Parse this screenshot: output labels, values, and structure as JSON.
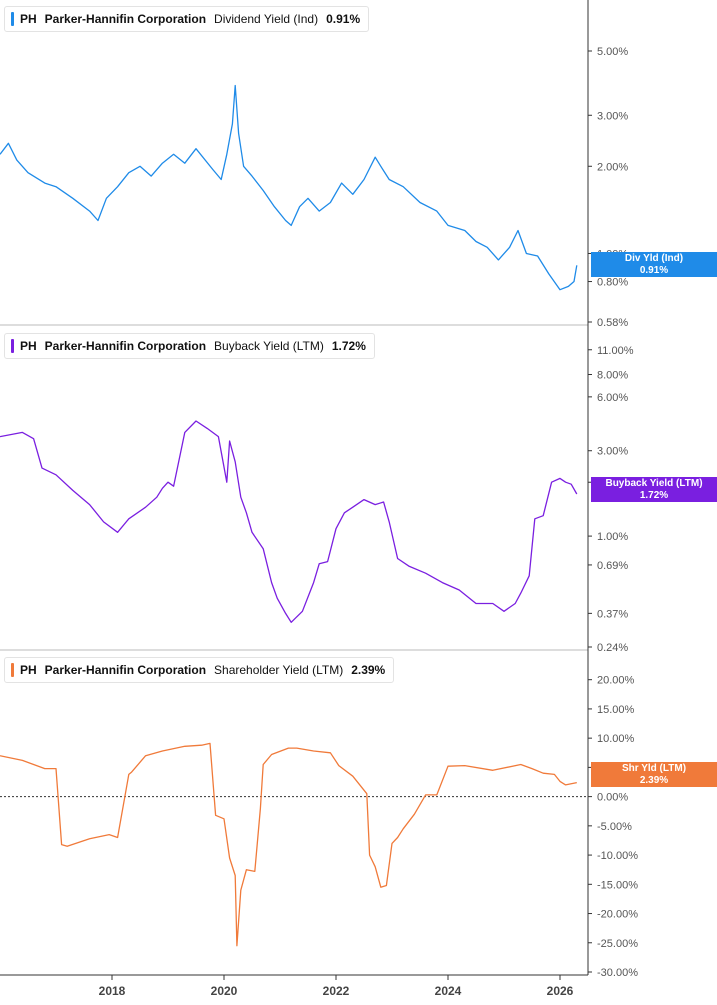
{
  "colors": {
    "dividend": "#1f8be8",
    "buyback": "#7a1fe0",
    "shareholder": "#f07a3a",
    "axis": "#333333",
    "separator": "#bbbbbb"
  },
  "panels": [
    {
      "ticker": "PH",
      "company": "Parker-Hannifin Corporation",
      "metric": "Dividend Yield (Ind)",
      "value": "0.91%",
      "tag_label": "Div Yld (Ind)",
      "tag_value": "0.91%"
    },
    {
      "ticker": "PH",
      "company": "Parker-Hannifin Corporation",
      "metric": "Buyback Yield (LTM)",
      "value": "1.72%",
      "tag_label": "Buyback Yield (LTM)",
      "tag_value": "1.72%"
    },
    {
      "ticker": "PH",
      "company": "Parker-Hannifin Corporation",
      "metric": "Shareholder Yield (LTM)",
      "value": "2.39%",
      "tag_label": "Shr Yld (LTM)",
      "tag_value": "2.39%"
    }
  ],
  "chart_data": [
    {
      "type": "line",
      "title": "PH Parker-Hannifin Corporation Dividend Yield (Ind) 0.91%",
      "scale": "log",
      "ylim": [
        0.58,
        6.5
      ],
      "y_ticks": [
        {
          "v": 5.0,
          "label": "5.00%"
        },
        {
          "v": 3.0,
          "label": "3.00%"
        },
        {
          "v": 2.0,
          "label": "2.00%"
        },
        {
          "v": 1.0,
          "label": "1.00%"
        },
        {
          "v": 0.8,
          "label": "0.80%"
        },
        {
          "v": 0.58,
          "label": "0.58%"
        }
      ],
      "series": [
        {
          "color": "#1f8be8",
          "x": [
            2016.0,
            2016.15,
            2016.3,
            2016.5,
            2016.8,
            2017.0,
            2017.3,
            2017.6,
            2017.75,
            2017.9,
            2018.1,
            2018.3,
            2018.5,
            2018.7,
            2018.9,
            2019.1,
            2019.3,
            2019.5,
            2019.8,
            2019.95,
            2020.05,
            2020.15,
            2020.2,
            2020.26,
            2020.35,
            2020.5,
            2020.7,
            2020.9,
            2021.1,
            2021.2,
            2021.35,
            2021.5,
            2021.7,
            2021.9,
            2022.1,
            2022.3,
            2022.5,
            2022.7,
            2022.8,
            2022.95,
            2023.2,
            2023.5,
            2023.8,
            2024.0,
            2024.3,
            2024.5,
            2024.7,
            2024.9,
            2025.1,
            2025.25,
            2025.4,
            2025.6,
            2025.8,
            2026.0,
            2026.15,
            2026.25,
            2026.3
          ],
          "values": [
            2.2,
            2.4,
            2.1,
            1.9,
            1.75,
            1.7,
            1.55,
            1.4,
            1.3,
            1.55,
            1.7,
            1.9,
            2.0,
            1.85,
            2.05,
            2.2,
            2.05,
            2.3,
            1.95,
            1.8,
            2.2,
            2.8,
            3.8,
            2.6,
            2.0,
            1.85,
            1.65,
            1.45,
            1.3,
            1.25,
            1.45,
            1.55,
            1.4,
            1.5,
            1.75,
            1.6,
            1.8,
            2.15,
            2.0,
            1.8,
            1.7,
            1.5,
            1.4,
            1.25,
            1.2,
            1.1,
            1.05,
            0.95,
            1.05,
            1.2,
            1.0,
            0.98,
            0.85,
            0.75,
            0.77,
            0.8,
            0.91
          ]
        }
      ]
    },
    {
      "type": "line",
      "title": "PH Parker-Hannifin Corporation Buyback Yield (LTM) 1.72%",
      "scale": "log",
      "ylim": [
        0.24,
        12.0
      ],
      "y_ticks": [
        {
          "v": 11.0,
          "label": "11.00%"
        },
        {
          "v": 8.0,
          "label": "8.00%"
        },
        {
          "v": 6.0,
          "label": "6.00%"
        },
        {
          "v": 3.0,
          "label": "3.00%"
        },
        {
          "v": 2.0,
          "label": "2.00%"
        },
        {
          "v": 1.0,
          "label": "1.00%"
        },
        {
          "v": 0.69,
          "label": "0.69%"
        },
        {
          "v": 0.37,
          "label": "0.37%"
        },
        {
          "v": 0.24,
          "label": "0.24%"
        }
      ],
      "series": [
        {
          "color": "#7a1fe0",
          "x": [
            2016.0,
            2016.4,
            2016.6,
            2016.75,
            2017.0,
            2017.3,
            2017.6,
            2017.85,
            2018.1,
            2018.3,
            2018.6,
            2018.8,
            2018.9,
            2019.0,
            2019.1,
            2019.3,
            2019.5,
            2019.7,
            2019.9,
            2020.05,
            2020.1,
            2020.2,
            2020.3,
            2020.4,
            2020.5,
            2020.7,
            2020.85,
            2020.95,
            2021.1,
            2021.2,
            2021.4,
            2021.6,
            2021.7,
            2021.85,
            2022.0,
            2022.15,
            2022.3,
            2022.5,
            2022.7,
            2022.85,
            2022.95,
            2023.1,
            2023.3,
            2023.6,
            2023.9,
            2024.2,
            2024.5,
            2024.8,
            2025.0,
            2025.2,
            2025.3,
            2025.45,
            2025.55,
            2025.7,
            2025.85,
            2026.0,
            2026.1,
            2026.2,
            2026.3
          ],
          "values": [
            3.6,
            3.8,
            3.5,
            2.4,
            2.2,
            1.8,
            1.5,
            1.2,
            1.05,
            1.25,
            1.45,
            1.65,
            1.85,
            2.0,
            1.9,
            3.8,
            4.4,
            4.0,
            3.6,
            2.0,
            3.4,
            2.6,
            1.65,
            1.35,
            1.05,
            0.85,
            0.55,
            0.45,
            0.37,
            0.33,
            0.38,
            0.55,
            0.7,
            0.72,
            1.1,
            1.35,
            1.45,
            1.6,
            1.5,
            1.55,
            1.2,
            0.75,
            0.68,
            0.62,
            0.55,
            0.5,
            0.42,
            0.42,
            0.38,
            0.42,
            0.48,
            0.6,
            1.25,
            1.3,
            2.0,
            2.1,
            2.0,
            1.95,
            1.72
          ]
        }
      ]
    },
    {
      "type": "line",
      "title": "PH Parker-Hannifin Corporation Shareholder Yield (LTM) 2.39%",
      "scale": "linear",
      "ylim": [
        -30.0,
        22.0
      ],
      "y_ticks": [
        {
          "v": 20,
          "label": "20.00%"
        },
        {
          "v": 15,
          "label": "15.00%"
        },
        {
          "v": 10,
          "label": "10.00%"
        },
        {
          "v": 5,
          "label": "5.00%"
        },
        {
          "v": 0,
          "label": "0.00%"
        },
        {
          "v": -5,
          "label": "-5.00%"
        },
        {
          "v": -10,
          "label": "-10.00%"
        },
        {
          "v": -15,
          "label": "-15.00%"
        },
        {
          "v": -20,
          "label": "-20.00%"
        },
        {
          "v": -25,
          "label": "-25.00%"
        },
        {
          "v": -30,
          "label": "-30.00%"
        }
      ],
      "zero_line": true,
      "series": [
        {
          "color": "#f07a3a",
          "x": [
            2016.0,
            2016.4,
            2016.6,
            2016.8,
            2017.0,
            2017.1,
            2017.2,
            2017.6,
            2017.95,
            2018.1,
            2018.3,
            2018.35,
            2018.6,
            2018.9,
            2019.3,
            2019.6,
            2019.75,
            2019.85,
            2020.0,
            2020.1,
            2020.2,
            2020.23,
            2020.3,
            2020.4,
            2020.55,
            2020.65,
            2020.7,
            2020.85,
            2021.15,
            2021.3,
            2021.6,
            2021.9,
            2022.05,
            2022.3,
            2022.55,
            2022.6,
            2022.7,
            2022.8,
            2022.9,
            2023.0,
            2023.1,
            2023.2,
            2023.4,
            2023.6,
            2023.8,
            2024.0,
            2024.3,
            2024.8,
            2025.3,
            2025.5,
            2025.7,
            2025.9,
            2026.0,
            2026.1,
            2026.3
          ],
          "values": [
            7.0,
            6.2,
            5.5,
            4.8,
            4.8,
            -8.2,
            -8.5,
            -7.2,
            -6.5,
            -7.0,
            3.8,
            4.2,
            7.0,
            7.8,
            8.6,
            8.8,
            9.1,
            -3.2,
            -3.8,
            -10.5,
            -13.5,
            -25.5,
            -16.0,
            -12.5,
            -12.8,
            -2.0,
            5.5,
            7.2,
            8.3,
            8.3,
            7.8,
            7.5,
            5.3,
            3.5,
            0.5,
            -10.0,
            -12.0,
            -15.5,
            -15.2,
            -8.0,
            -7.0,
            -5.5,
            -3.0,
            0.3,
            0.3,
            5.2,
            5.3,
            4.5,
            5.5,
            4.8,
            4.0,
            3.8,
            2.6,
            2.0,
            2.39
          ]
        }
      ]
    }
  ],
  "x_axis": {
    "ticks": [
      {
        "v": 2018,
        "label": "2018"
      },
      {
        "v": 2020,
        "label": "2020"
      },
      {
        "v": 2022,
        "label": "2022"
      },
      {
        "v": 2024,
        "label": "2024"
      },
      {
        "v": 2026,
        "label": "2026"
      }
    ],
    "xlim": [
      2016.0,
      2026.5
    ]
  }
}
